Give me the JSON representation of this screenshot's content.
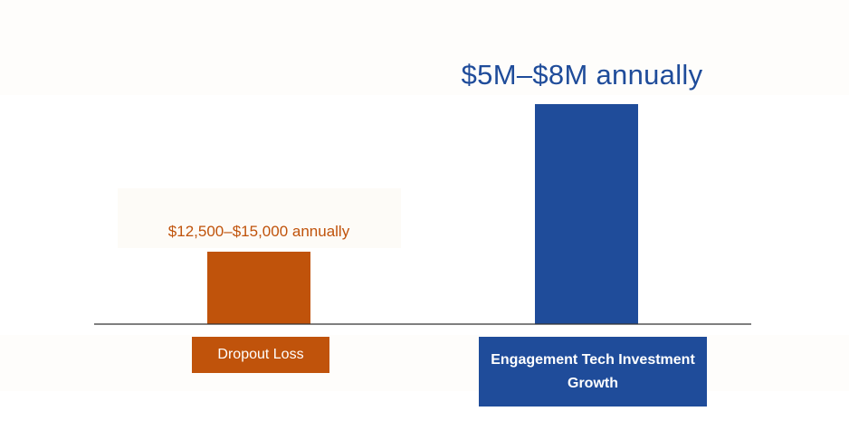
{
  "chart_data": {
    "type": "bar",
    "title": "",
    "xlabel": "",
    "ylabel": "",
    "categories": [
      "Dropout Loss",
      "Engagement Tech Investment Growth"
    ],
    "values": [
      13750,
      6500000
    ],
    "value_labels": [
      "$12,500–$15,000 annually",
      "$5M–$8M annually"
    ],
    "colors": [
      "#c0530b",
      "#1f4c9a"
    ],
    "grid": false,
    "legend": "none"
  }
}
